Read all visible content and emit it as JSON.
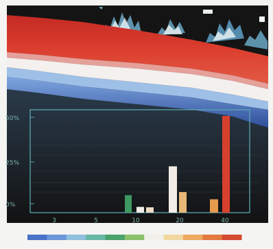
{
  "colors": {
    "frame": "#f4f4f2",
    "screen": "#141414",
    "red_band": "#d6372b",
    "white_band": "#f4f0ee",
    "blue_band": "#5f86c8",
    "chart_frame": "#5aa6b0",
    "label": "#7fb6b0"
  },
  "chart_data": {
    "type": "bar",
    "y_ticks": [
      "50%",
      "25%",
      "0%"
    ],
    "x_ticks": [
      "3",
      "5",
      "10",
      "20",
      "40"
    ],
    "ylim": [
      0,
      50
    ],
    "grid": false,
    "bars": [
      {
        "value": 8.5,
        "color": "#3e9a62"
      },
      {
        "value": 2.8,
        "color": "#f1ece6"
      },
      {
        "value": 2.6,
        "color": "#ecdcc4"
      },
      {
        "value": 22.5,
        "color": "#f3ece6"
      },
      {
        "value": 10.0,
        "color": "#e9b778"
      },
      {
        "value": 6.5,
        "color": "#e59a4e"
      },
      {
        "value": 47.0,
        "color": "#d8402e"
      }
    ]
  },
  "color_scale": [
    "#4a72c8",
    "#6b96da",
    "#8fc0de",
    "#6ab8a6",
    "#4aa26c",
    "#8cc06a",
    "#f2f0ea",
    "#f0d8a0",
    "#eeaa60",
    "#e27a42",
    "#d54a30"
  ]
}
